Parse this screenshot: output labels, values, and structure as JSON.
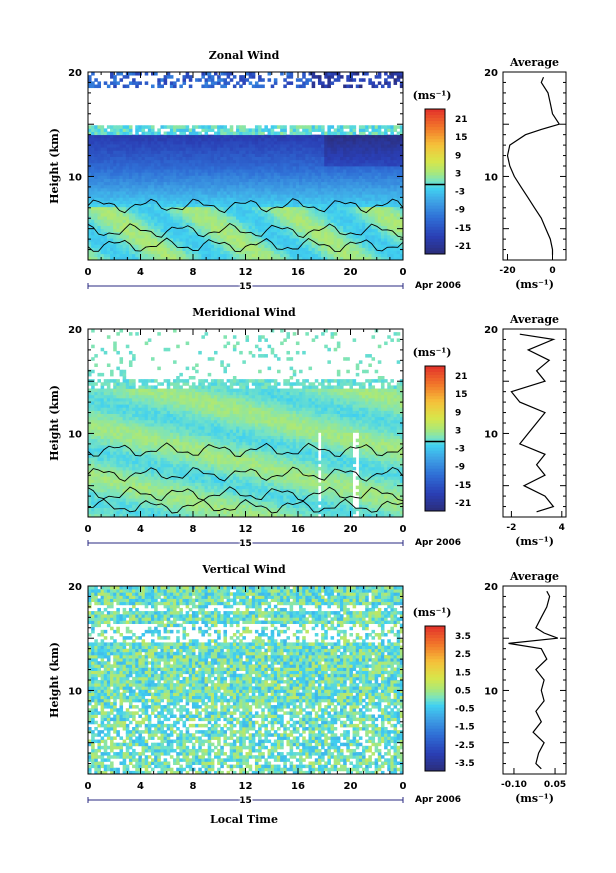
{
  "chart_data": [
    {
      "type": "heatmap",
      "title": "Zonal Wind",
      "ylabel": "Height (km)",
      "x_ticks": [
        "0",
        "4",
        "8",
        "12",
        "16",
        "20",
        "0"
      ],
      "day_label": "15",
      "date_label": "Apr 2006",
      "xlim": [
        0,
        24
      ],
      "ylim": [
        2,
        20
      ],
      "y_ticks": [
        "10",
        "20"
      ],
      "colorbar": {
        "unit": "(ms⁻¹)",
        "ticks": [
          "21",
          "15",
          "9",
          "3",
          "-3",
          "-9",
          "-15",
          "-21"
        ],
        "range": [
          -24,
          24
        ]
      },
      "field": "zonal",
      "average_profile": {
        "title": "Average",
        "xlabel": "(ms⁻¹)",
        "x_ticks": [
          "-20",
          "0"
        ],
        "xlim": [
          -22,
          6
        ],
        "y_ticks": [
          "10",
          "20"
        ],
        "height": [
          2.5,
          3,
          4,
          5,
          6,
          7,
          8,
          9,
          10,
          11,
          12,
          13,
          14,
          14.5,
          15,
          16,
          17,
          18,
          19,
          19.5
        ],
        "value": [
          0,
          0,
          -1,
          -3,
          -5,
          -8,
          -11,
          -14,
          -17,
          -19,
          -20,
          -19,
          -12,
          -5,
          3,
          0,
          -1,
          -2,
          -5,
          -4
        ]
      }
    },
    {
      "type": "heatmap",
      "title": "Meridional Wind",
      "ylabel": "Height (km)",
      "x_ticks": [
        "0",
        "4",
        "8",
        "12",
        "16",
        "20",
        "0"
      ],
      "day_label": "15",
      "date_label": "Apr 2006",
      "xlim": [
        0,
        24
      ],
      "ylim": [
        2,
        20
      ],
      "y_ticks": [
        "10",
        "20"
      ],
      "colorbar": {
        "unit": "(ms⁻¹)",
        "ticks": [
          "21",
          "15",
          "9",
          "3",
          "-3",
          "-9",
          "-15",
          "-21"
        ],
        "range": [
          -24,
          24
        ]
      },
      "field": "meridional",
      "average_profile": {
        "title": "Average",
        "xlabel": "(ms⁻¹)",
        "x_ticks": [
          "-2",
          "4"
        ],
        "xlim": [
          -3,
          4.5
        ],
        "y_ticks": [
          "10",
          "20"
        ],
        "height": [
          2.5,
          3,
          4,
          5,
          6,
          7,
          8,
          9,
          10,
          11,
          12,
          13,
          14,
          15,
          16,
          17,
          18,
          19,
          19.5
        ],
        "value": [
          1,
          3,
          2,
          -0.5,
          2,
          1,
          2,
          -1,
          0,
          1,
          2,
          -1,
          -2,
          2,
          1,
          2.5,
          0,
          3,
          -1
        ]
      }
    },
    {
      "type": "heatmap",
      "title": "Vertical Wind",
      "ylabel": "Height (km)",
      "xlabel": "Local Time",
      "x_ticks": [
        "0",
        "4",
        "8",
        "12",
        "16",
        "20",
        "0"
      ],
      "day_label": "15",
      "date_label": "Apr 2006",
      "xlim": [
        0,
        24
      ],
      "ylim": [
        2,
        20
      ],
      "y_ticks": [
        "10",
        "20"
      ],
      "colorbar": {
        "unit": "(ms⁻¹)",
        "ticks": [
          "3.5",
          "2.5",
          "1.5",
          "0.5",
          "-0.5",
          "-1.5",
          "-2.5",
          "-3.5"
        ],
        "range": [
          -4,
          4
        ]
      },
      "field": "vertical",
      "average_profile": {
        "title": "Average",
        "xlabel": "(ms⁻¹)",
        "x_ticks": [
          "-0.10",
          "0.05"
        ],
        "xlim": [
          -0.14,
          0.09
        ],
        "y_ticks": [
          "10",
          "20"
        ],
        "height": [
          2.5,
          3,
          4,
          5,
          6,
          7,
          8,
          9,
          10,
          11,
          12,
          13,
          14,
          14.5,
          15,
          15.5,
          16,
          17,
          18,
          19,
          19.5
        ],
        "value": [
          0,
          -0.02,
          -0.01,
          0.01,
          -0.03,
          0.0,
          -0.02,
          0.01,
          0.0,
          0.01,
          -0.02,
          0.02,
          0.0,
          -0.12,
          0.06,
          0.01,
          -0.02,
          0.0,
          0.02,
          0.03,
          0.02
        ]
      }
    }
  ]
}
